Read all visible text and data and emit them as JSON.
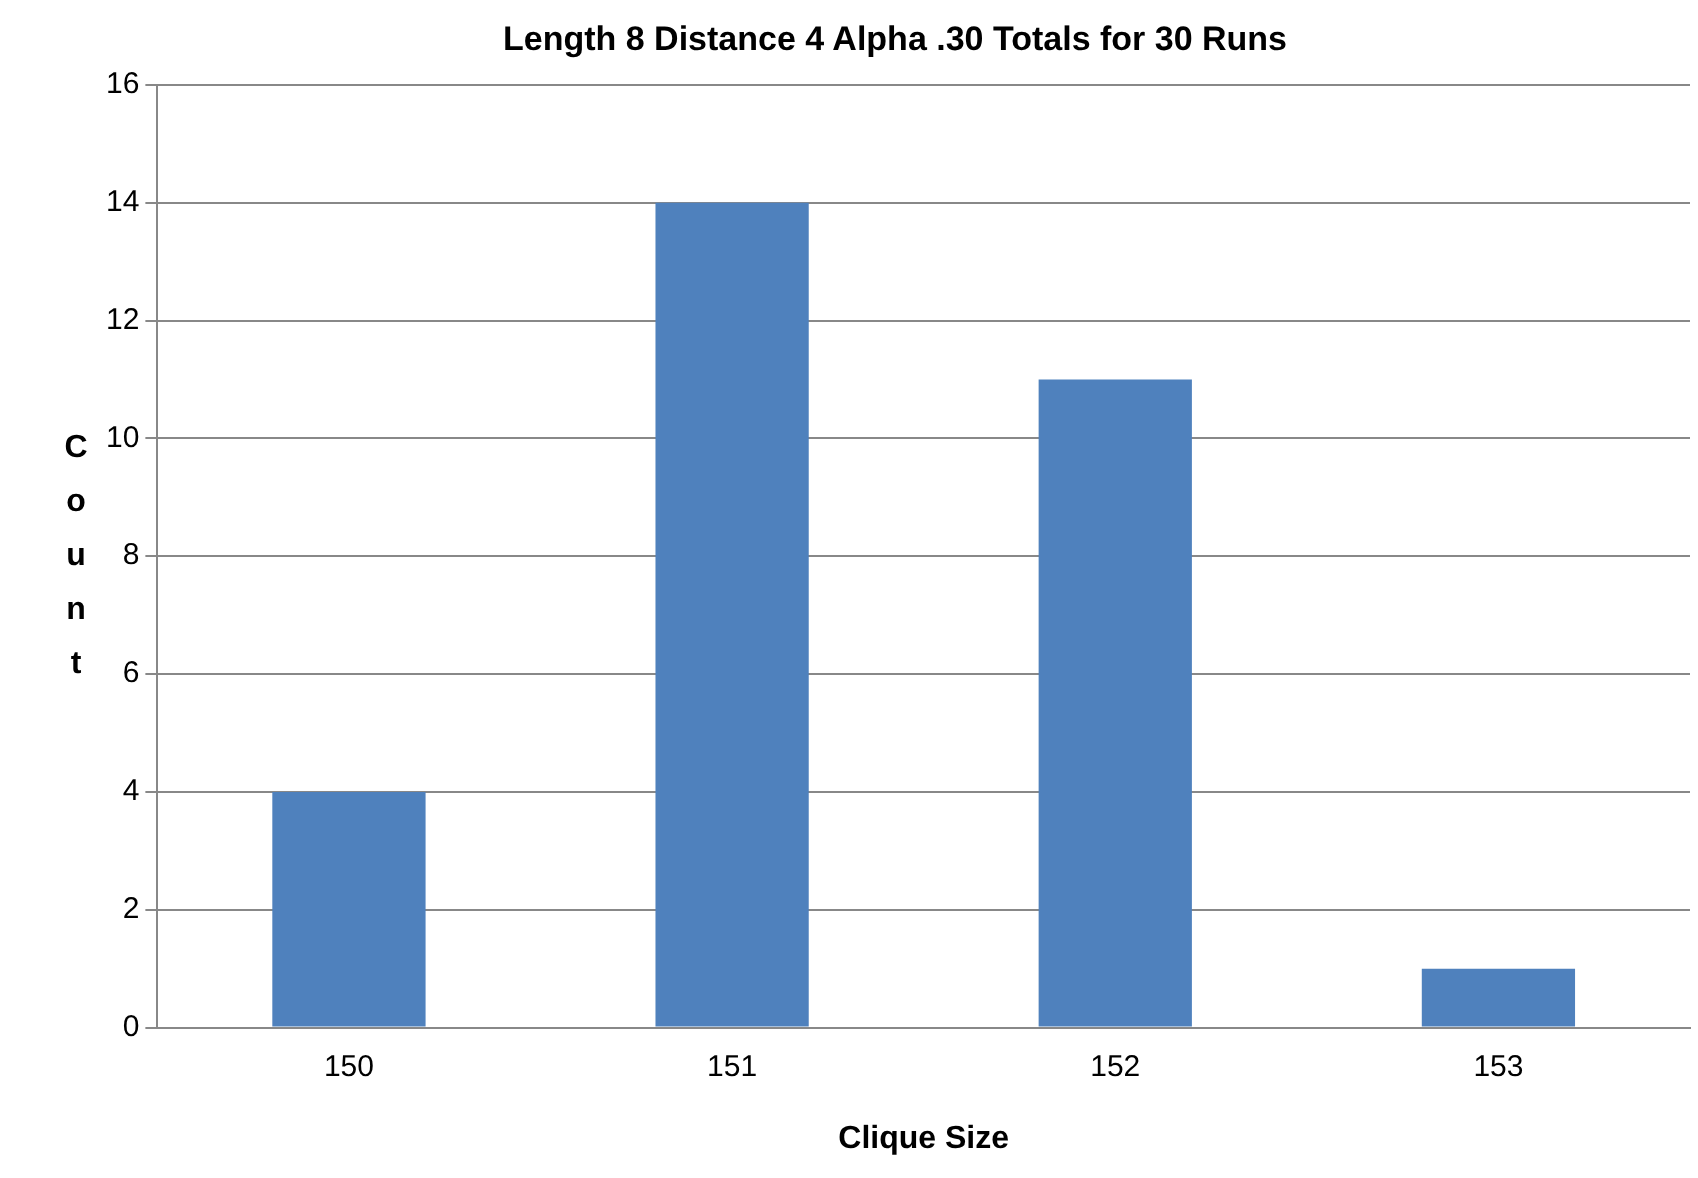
{
  "chart_data": {
    "type": "bar",
    "title": "Length 8 Distance 4 Alpha .30 Totals for 30 Runs",
    "xlabel": "Clique Size",
    "ylabel": "Count",
    "categories": [
      "150",
      "151",
      "152",
      "153"
    ],
    "values": [
      4,
      14,
      11,
      1
    ],
    "color": "#4f81bd",
    "ylim": [
      0,
      16
    ],
    "yticks": [
      0,
      2,
      4,
      6,
      8,
      10,
      12,
      14,
      16
    ],
    "grid": "y",
    "legend": false
  }
}
